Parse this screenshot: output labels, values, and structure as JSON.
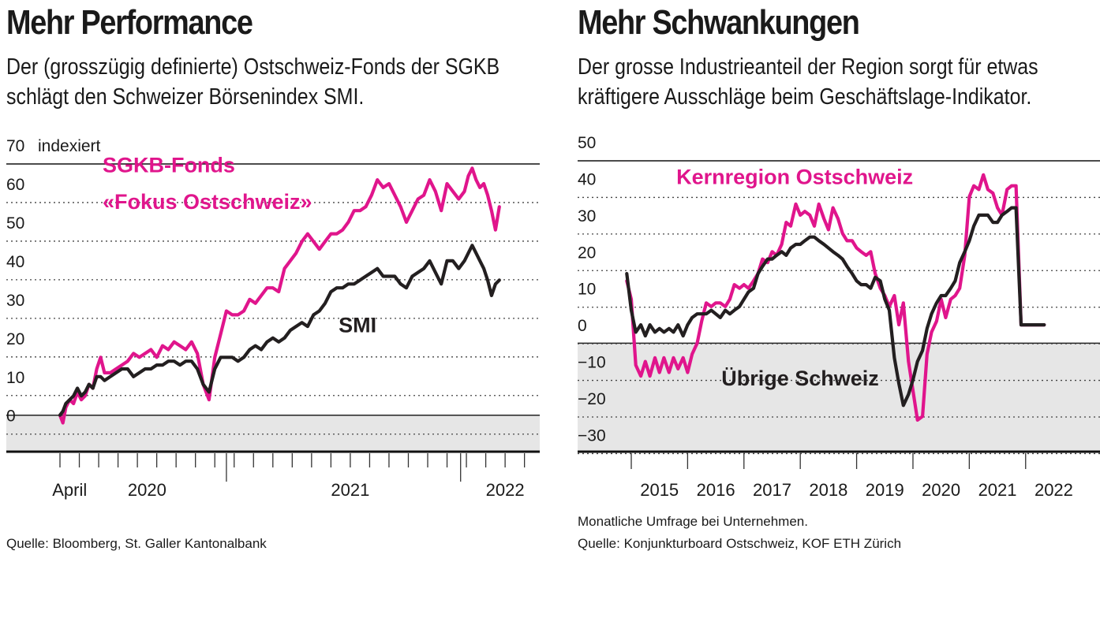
{
  "colors": {
    "magenta": "#e0158c",
    "dark": "#231f20",
    "shade": "#e6e6e6",
    "grid": "#444444"
  },
  "left": {
    "title": "Mehr Performance",
    "subtitle_lines": [
      "Der (grosszügig definierte) Ostschweiz-Fonds der SGKB",
      "schlägt den Schweizer Börsenindex SMI."
    ],
    "source": "Quelle: Bloomberg, St. Galler Kantonalbank",
    "chart_data": {
      "type": "line",
      "ylabel": "indexiert",
      "ylim": [
        -7,
        70
      ],
      "yticks": [
        0,
        10,
        20,
        30,
        40,
        50,
        60,
        70
      ],
      "shaded_below": 0,
      "xlim": [
        0,
        24.3
      ],
      "xlabels": [
        {
          "x": 0.5,
          "label": "April"
        },
        {
          "x": 4.5,
          "label": "2020"
        },
        {
          "x": 15,
          "label": "2021"
        },
        {
          "x": 23,
          "label": "2022"
        }
      ],
      "xtick_months": 24,
      "year_separators": [
        8.6,
        20.7
      ],
      "annotations": [
        {
          "text": "SGKB-Fonds",
          "x": 2.2,
          "y": 63,
          "color": "magenta"
        },
        {
          "text": "«Fokus Ostschweiz»",
          "x": 2.2,
          "y": 53.5,
          "color": "magenta"
        },
        {
          "text": "SMI",
          "x": 14.4,
          "y": 21.5,
          "color": "dark"
        }
      ],
      "series": [
        {
          "name": "SGKB-Fonds «Fokus Ostschweiz»",
          "color": "magenta",
          "x": [
            0,
            0.15,
            0.3,
            0.5,
            0.7,
            0.9,
            1.1,
            1.3,
            1.5,
            1.7,
            1.9,
            2.1,
            2.3,
            2.6,
            2.9,
            3.2,
            3.5,
            3.8,
            4.1,
            4.4,
            4.7,
            5.0,
            5.3,
            5.6,
            5.9,
            6.2,
            6.5,
            6.8,
            7.1,
            7.4,
            7.7,
            8.0,
            8.3,
            8.6,
            8.9,
            9.2,
            9.5,
            9.8,
            10.1,
            10.4,
            10.7,
            11.0,
            11.3,
            11.6,
            11.9,
            12.2,
            12.5,
            12.8,
            13.1,
            13.4,
            13.7,
            14.0,
            14.3,
            14.6,
            14.9,
            15.2,
            15.5,
            15.8,
            16.1,
            16.4,
            16.7,
            17.0,
            17.3,
            17.6,
            17.9,
            18.2,
            18.5,
            18.8,
            19.1,
            19.4,
            19.7,
            20.0,
            20.3,
            20.6,
            20.9,
            21.1,
            21.3,
            21.5,
            21.7,
            21.9,
            22.1,
            22.3,
            22.5,
            22.7
          ],
          "values": [
            0,
            -2,
            2,
            4,
            3,
            6,
            4,
            5,
            8,
            7,
            12,
            15,
            11,
            11,
            12,
            13,
            14,
            16,
            15,
            16,
            17,
            15,
            18,
            17,
            19,
            18,
            17,
            19,
            16,
            8,
            4,
            15,
            21,
            27,
            26,
            26,
            27,
            30,
            29,
            31,
            33,
            33,
            32,
            38,
            40,
            42,
            45,
            47,
            45,
            43,
            45,
            47,
            47,
            48,
            50,
            53,
            53,
            54,
            57,
            61,
            59,
            60,
            57,
            54,
            50,
            53,
            56,
            57,
            61,
            58,
            53,
            60,
            58,
            56,
            58,
            62,
            64,
            61,
            59,
            60,
            57,
            53,
            48,
            54
          ]
        },
        {
          "name": "SMI",
          "color": "dark",
          "x": [
            0,
            0.15,
            0.3,
            0.5,
            0.7,
            0.9,
            1.1,
            1.3,
            1.5,
            1.7,
            1.9,
            2.1,
            2.3,
            2.6,
            2.9,
            3.2,
            3.5,
            3.8,
            4.1,
            4.4,
            4.7,
            5.0,
            5.3,
            5.6,
            5.9,
            6.2,
            6.5,
            6.8,
            7.1,
            7.4,
            7.7,
            8.0,
            8.3,
            8.6,
            8.9,
            9.2,
            9.5,
            9.8,
            10.1,
            10.4,
            10.7,
            11.0,
            11.3,
            11.6,
            11.9,
            12.2,
            12.5,
            12.8,
            13.1,
            13.4,
            13.7,
            14.0,
            14.3,
            14.6,
            14.9,
            15.2,
            15.5,
            15.8,
            16.1,
            16.4,
            16.7,
            17.0,
            17.3,
            17.6,
            17.9,
            18.2,
            18.5,
            18.8,
            19.1,
            19.4,
            19.7,
            20.0,
            20.3,
            20.6,
            20.9,
            21.1,
            21.3,
            21.5,
            21.7,
            21.9,
            22.1,
            22.3,
            22.5,
            22.7
          ],
          "values": [
            0,
            1,
            3,
            4,
            5,
            7,
            5,
            6,
            8,
            7,
            10,
            10,
            9,
            10,
            11,
            12,
            12,
            10,
            11,
            12,
            12,
            13,
            13,
            14,
            14,
            13,
            14,
            14,
            12,
            8,
            6,
            12,
            15,
            15,
            15,
            14,
            15,
            17,
            18,
            17,
            19,
            20,
            19,
            20,
            22,
            23,
            24,
            23,
            26,
            27,
            29,
            32,
            33,
            33,
            34,
            34,
            35,
            36,
            37,
            38,
            36,
            36,
            36,
            34,
            33,
            36,
            37,
            38,
            40,
            37,
            34,
            40,
            40,
            38,
            40,
            42,
            44,
            42,
            40,
            38,
            35,
            31,
            34,
            35
          ]
        }
      ]
    }
  },
  "right": {
    "title": "Mehr Schwankungen",
    "subtitle_lines": [
      "Der grosse Industrieanteil der Region sorgt für etwas",
      "kräftigere Ausschläge beim Geschäftslage-Indikator."
    ],
    "note": "Monatliche Umfrage bei Unternehmen.",
    "source": "Quelle: Konjunkturboard Ostschweiz, KOF ETH Zürich",
    "chart_data": {
      "type": "line",
      "ylim": [
        -34,
        50
      ],
      "yticks": [
        -30,
        -20,
        -10,
        0,
        10,
        20,
        30,
        40,
        50
      ],
      "shaded_below": -5,
      "xlim": [
        2014.5,
        2022.4
      ],
      "xlabels": [
        {
          "x": 2015,
          "label": "2015"
        },
        {
          "x": 2016,
          "label": "2016"
        },
        {
          "x": 2017,
          "label": "2017"
        },
        {
          "x": 2018,
          "label": "2018"
        },
        {
          "x": 2019,
          "label": "2019"
        },
        {
          "x": 2020,
          "label": "2020"
        },
        {
          "x": 2021,
          "label": "2021"
        },
        {
          "x": 2022,
          "label": "2022"
        }
      ],
      "year_ticks": [
        2014.5,
        2015.5,
        2016.5,
        2017.5,
        2018.5,
        2019.5,
        2020.5,
        2021.5
      ],
      "annotations": [
        {
          "text": "Kernregion Ostschweiz",
          "x": 2015.3,
          "y": 38.5,
          "color": "magenta"
        },
        {
          "text": "Übrige Schweiz",
          "x": 2016.1,
          "y": -16.5,
          "color": "dark"
        }
      ],
      "series": [
        {
          "name": "Kernregion Ostschweiz",
          "color": "magenta",
          "x": [
            2014.42,
            2014.5,
            2014.58,
            2014.67,
            2014.75,
            2014.83,
            2014.92,
            2015.0,
            2015.08,
            2015.17,
            2015.25,
            2015.33,
            2015.42,
            2015.5,
            2015.58,
            2015.67,
            2015.75,
            2015.83,
            2015.92,
            2016.0,
            2016.08,
            2016.17,
            2016.25,
            2016.33,
            2016.42,
            2016.5,
            2016.58,
            2016.67,
            2016.75,
            2016.83,
            2016.92,
            2017.0,
            2017.08,
            2017.17,
            2017.25,
            2017.33,
            2017.42,
            2017.5,
            2017.58,
            2017.67,
            2017.75,
            2017.83,
            2017.92,
            2018.0,
            2018.08,
            2018.17,
            2018.25,
            2018.33,
            2018.42,
            2018.5,
            2018.58,
            2018.67,
            2018.75,
            2018.83,
            2018.92,
            2019.0,
            2019.08,
            2019.17,
            2019.25,
            2019.33,
            2019.42,
            2019.5,
            2019.58,
            2019.67,
            2019.75,
            2019.83,
            2019.92,
            2020.0,
            2020.08,
            2020.17,
            2020.25,
            2020.33,
            2020.42,
            2020.5,
            2020.58,
            2020.67,
            2020.75,
            2020.83,
            2020.92,
            2021.0,
            2021.08,
            2021.17,
            2021.25,
            2021.33,
            2021.42,
            2021.5,
            2021.58,
            2021.67,
            2021.75,
            2021.83
          ],
          "values": [
            12,
            7,
            -11,
            -14,
            -10,
            -14,
            -9,
            -13,
            -9,
            -13,
            -9,
            -12,
            -9,
            -13,
            -8,
            -5,
            1,
            6,
            5,
            6,
            6,
            5,
            7,
            11,
            10,
            11,
            10,
            12,
            14,
            18,
            17,
            20,
            19,
            22,
            28,
            27,
            33,
            30,
            31,
            30,
            27,
            33,
            29,
            26,
            32,
            29,
            25,
            23,
            23,
            21,
            20,
            19,
            20,
            14,
            10,
            8,
            5,
            8,
            0,
            6,
            -10,
            -18,
            -26,
            -25,
            -8,
            -2,
            1,
            7,
            2,
            7,
            8,
            10,
            19,
            35,
            38,
            37,
            41,
            37,
            36,
            32,
            30,
            37,
            38,
            38,
            0,
            0,
            0,
            0,
            0,
            0
          ]
        },
        {
          "name": "Übrige Schweiz",
          "color": "dark",
          "x": [
            2014.42,
            2014.5,
            2014.58,
            2014.67,
            2014.75,
            2014.83,
            2014.92,
            2015.0,
            2015.08,
            2015.17,
            2015.25,
            2015.33,
            2015.42,
            2015.5,
            2015.58,
            2015.67,
            2015.75,
            2015.83,
            2015.92,
            2016.0,
            2016.08,
            2016.17,
            2016.25,
            2016.33,
            2016.42,
            2016.5,
            2016.58,
            2016.67,
            2016.75,
            2016.83,
            2016.92,
            2017.0,
            2017.08,
            2017.17,
            2017.25,
            2017.33,
            2017.42,
            2017.5,
            2017.58,
            2017.67,
            2017.75,
            2017.83,
            2017.92,
            2018.0,
            2018.08,
            2018.17,
            2018.25,
            2018.33,
            2018.42,
            2018.5,
            2018.58,
            2018.67,
            2018.75,
            2018.83,
            2018.92,
            2019.0,
            2019.08,
            2019.17,
            2019.25,
            2019.33,
            2019.42,
            2019.5,
            2019.58,
            2019.67,
            2019.75,
            2019.83,
            2019.92,
            2020.0,
            2020.08,
            2020.17,
            2020.25,
            2020.33,
            2020.42,
            2020.5,
            2020.58,
            2020.67,
            2020.75,
            2020.83,
            2020.92,
            2021.0,
            2021.08,
            2021.17,
            2021.25,
            2021.33,
            2021.42,
            2021.5,
            2021.58,
            2021.67,
            2021.75,
            2021.83
          ],
          "values": [
            14,
            4,
            -2,
            0,
            -3,
            0,
            -2,
            -1,
            -2,
            -1,
            -2,
            0,
            -3,
            0,
            2,
            3,
            3,
            3,
            4,
            3,
            2,
            4,
            3,
            4,
            5,
            7,
            9,
            10,
            14,
            16,
            18,
            18,
            19,
            20,
            19,
            21,
            22,
            22,
            23,
            24,
            24,
            23,
            22,
            21,
            20,
            19,
            18,
            16,
            14,
            12,
            11,
            11,
            10,
            13,
            12,
            7,
            4,
            -9,
            -16,
            -22,
            -19,
            -15,
            -10,
            -7,
            -1,
            3,
            6,
            8,
            8,
            10,
            12,
            17,
            20,
            23,
            27,
            30,
            30,
            30,
            28,
            28,
            30,
            31,
            32,
            32,
            0,
            0,
            0,
            0,
            0,
            0
          ]
        }
      ]
    }
  }
}
